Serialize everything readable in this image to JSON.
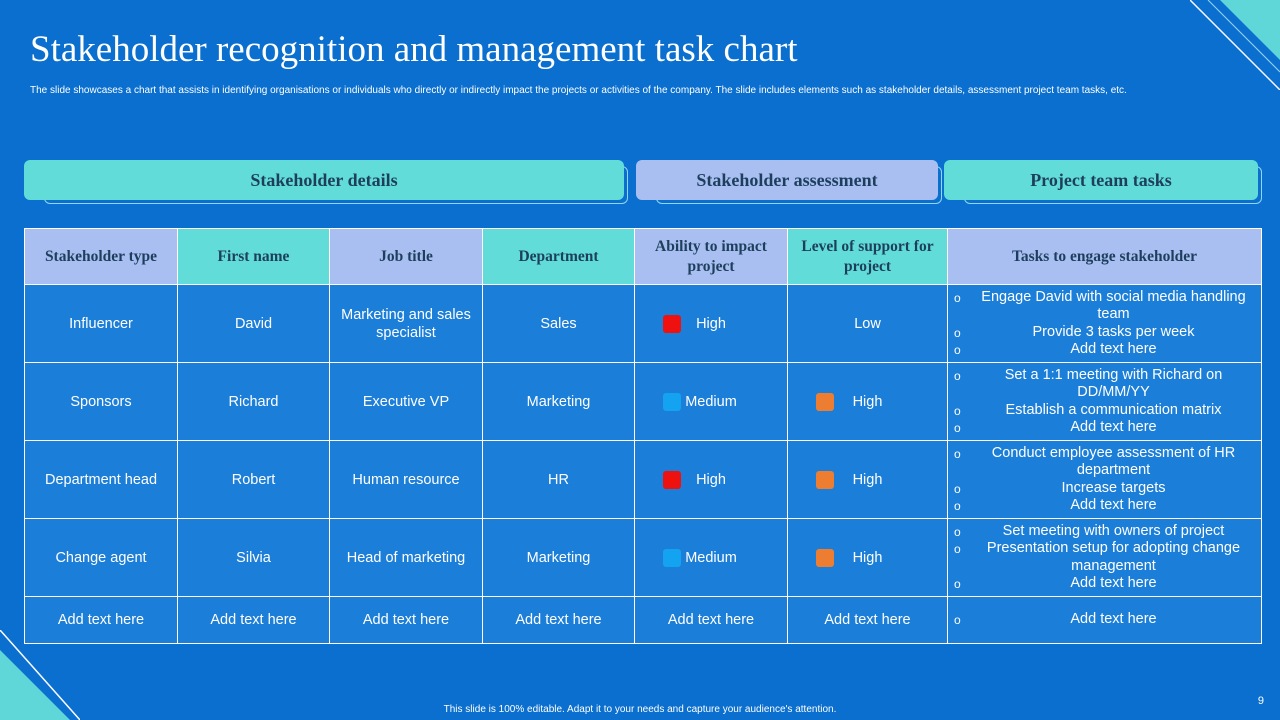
{
  "slide": {
    "title": "Stakeholder recognition and management task chart",
    "subtitle": "The slide showcases a chart that assists in identifying organisations or individuals who directly or indirectly impact the projects or activities of the company. The slide includes elements such as stakeholder details, assessment project team tasks, etc.",
    "footer": "This slide is 100% editable. Adapt it to your needs and capture your audience's attention.",
    "page_number": "9"
  },
  "section_headers": {
    "details": "Stakeholder details",
    "assessment": "Stakeholder assessment",
    "tasks": "Project team tasks"
  },
  "columns": {
    "type": "Stakeholder type",
    "first_name": "First name",
    "job_title": "Job title",
    "department": "Department",
    "ability": "Ability to impact project",
    "support": "Level of support for project",
    "tasks": "Tasks to engage stakeholder"
  },
  "rows": [
    {
      "type": "Influencer",
      "first_name": "David",
      "job_title": "Marketing and sales specialist",
      "department": "Sales",
      "ability": "High",
      "support": "Low",
      "tasks": [
        "Engage David with social media handling team",
        "Provide 3 tasks per week",
        "Add text here"
      ]
    },
    {
      "type": "Sponsors",
      "first_name": "Richard",
      "job_title": "Executive VP",
      "department": "Marketing",
      "ability": "Medium",
      "support": "High",
      "tasks": [
        "Set a 1:1 meeting with Richard on DD/MM/YY",
        "Establish a communication matrix",
        "Add text here"
      ]
    },
    {
      "type": "Department head",
      "first_name": "Robert",
      "job_title": "Human resource",
      "department": "HR",
      "ability": "High",
      "support": "High",
      "tasks": [
        "Conduct employee assessment of HR department",
        "Increase targets",
        "Add text here"
      ]
    },
    {
      "type": "Change agent",
      "first_name": "Silvia",
      "job_title": "Head of marketing",
      "department": "Marketing",
      "ability": "Medium",
      "support": "High",
      "tasks": [
        "Set meeting with owners of project",
        "Presentation setup for adopting change management",
        "Add text here"
      ]
    },
    {
      "type": "Add text here",
      "first_name": "Add text here",
      "job_title": "Add text here",
      "department": "Add text here",
      "ability": "Add text here",
      "support": "Add text here",
      "tasks": [
        "Add text here"
      ]
    }
  ],
  "colors": {
    "background": "#0a6fce",
    "cell": "#1b7ed8",
    "header_teal": "#62dcd8",
    "header_lavender": "#a9bff2",
    "level_high_ability": "#ef1010",
    "level_medium": "#14a3f0",
    "level_high_support": "#ed7d31"
  }
}
